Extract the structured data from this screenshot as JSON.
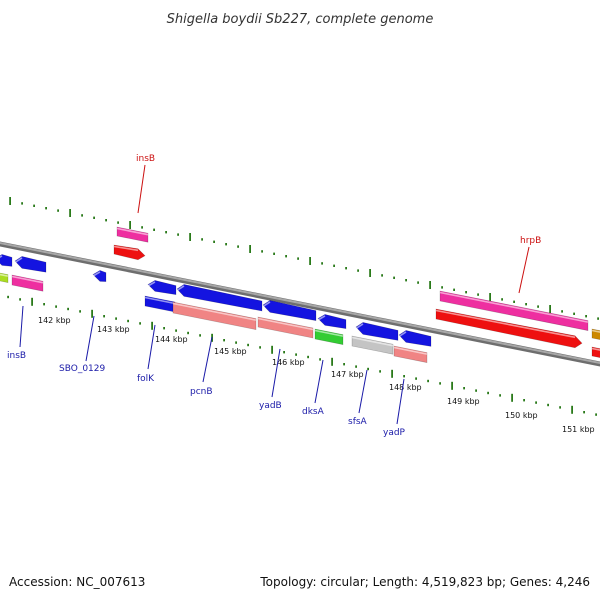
{
  "title": "Shigella boydii Sb227, complete genome",
  "footer": {
    "accession": "Accession: NC_007613",
    "topology": "Topology: circular; Length: 4,519,823 bp; Genes: 4,246"
  },
  "colors": {
    "backbone": "#8a8a8a",
    "tick": "#2a7a1a",
    "label_blue": "#1a1aa8",
    "label_red": "#cc1111",
    "blue": "#1414e0",
    "magenta": "#ee2fa0",
    "red": "#ee1010",
    "salmon": "#f08484",
    "green": "#33cc33",
    "gray": "#c4c4c4",
    "yellowgreen": "#aadd22"
  },
  "kbp_labels": [
    "142 kbp",
    "143 kbp",
    "144 kbp",
    "145 kbp",
    "146 kbp",
    "147 kbp",
    "148 kbp",
    "149 kbp",
    "150 kbp",
    "151 kbp"
  ],
  "gene_labels": {
    "insB_left": "insB",
    "SBO_0129": "SBO_0129",
    "folK": "folK",
    "pcnB": "pcnB",
    "yadB": "yadB",
    "dksA": "dksA",
    "sfsA": "sfsA",
    "yadP": "yadP",
    "insB_top": "insB",
    "hrpB": "hrpB"
  }
}
